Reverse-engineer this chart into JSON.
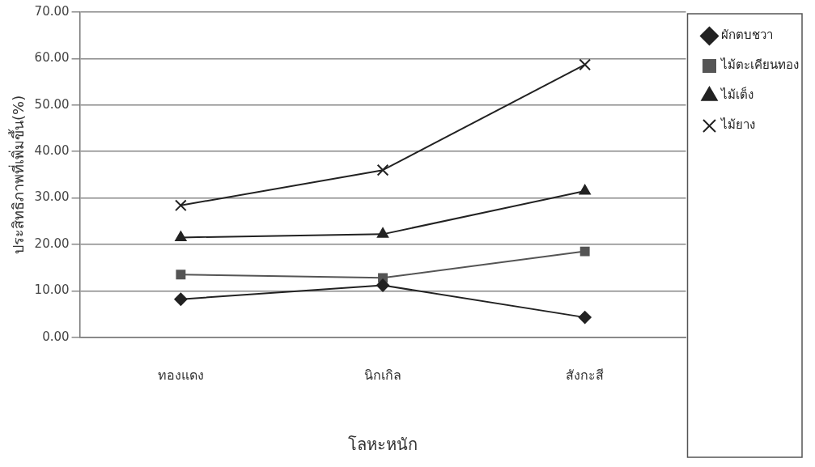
{
  "chart_data": {
    "type": "line",
    "xlabel": "โลหะหนัก",
    "ylabel": "ประสิทธิภาพที่เพิ่มขึ้น(%)",
    "categories": [
      "ทองแดง",
      "นิกเกิล",
      "สังกะสี"
    ],
    "series": [
      {
        "name": "ผักตบชวา",
        "color": "#222222",
        "marker": "diamond",
        "values": [
          8.2,
          11.2,
          4.3
        ]
      },
      {
        "name": "ไม้ตะเคียนทอง",
        "color": "#555555",
        "marker": "square",
        "values": [
          13.5,
          12.8,
          18.5
        ]
      },
      {
        "name": "ไม้เต็ง",
        "color": "#222222",
        "marker": "triangle",
        "values": [
          21.5,
          22.2,
          31.5
        ]
      },
      {
        "name": "ไม้ยาง",
        "color": "#222222",
        "marker": "cross",
        "values": [
          28.4,
          36.0,
          58.7
        ]
      }
    ],
    "ylim": [
      0,
      70
    ],
    "yticks": [
      {
        "value": 0,
        "label": "0.00"
      },
      {
        "value": 10,
        "label": "10.00"
      },
      {
        "value": 20,
        "label": "20.00"
      },
      {
        "value": 30,
        "label": "30.00"
      },
      {
        "value": 40,
        "label": "40.00"
      },
      {
        "value": 50,
        "label": "50.00"
      },
      {
        "value": 60,
        "label": "60.00"
      },
      {
        "value": 70,
        "label": "70.00"
      }
    ],
    "grid": "y",
    "legend": "top right",
    "line_style": "solid"
  }
}
